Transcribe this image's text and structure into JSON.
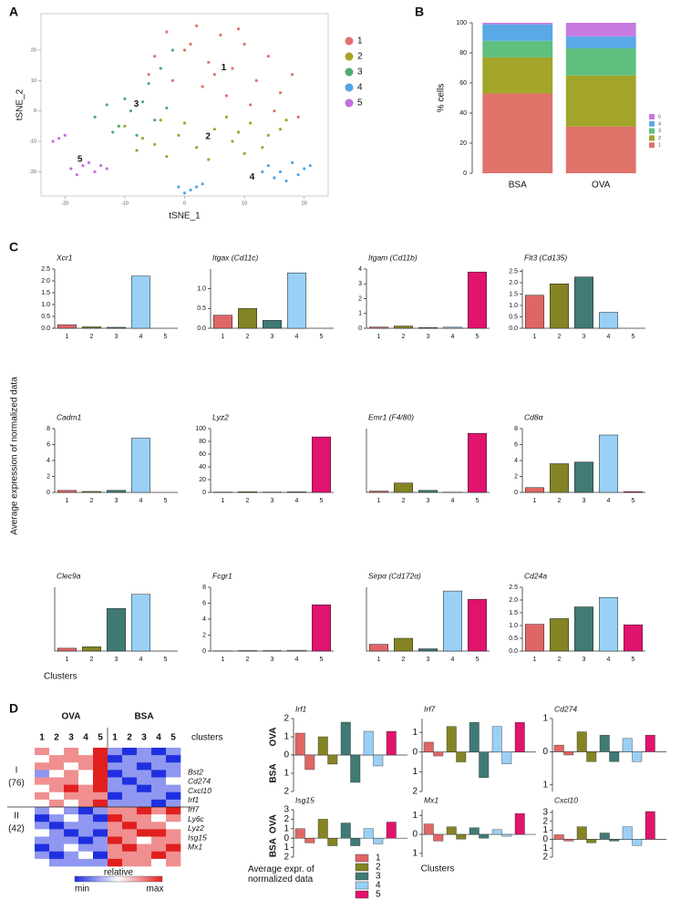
{
  "chart_data": [
    {
      "type": "scatter",
      "panel": "A",
      "x_label": "tSNE_1",
      "y_label": "tSNE_2",
      "xlim": [
        -24,
        24
      ],
      "ylim": [
        -28,
        32
      ],
      "xticks": [
        -20,
        -10,
        0,
        10,
        20
      ],
      "yticks": [
        -20,
        -10,
        0,
        10,
        20
      ],
      "grid": false,
      "series": [
        {
          "name": "1",
          "color": "#e0736a",
          "x": [
            -3,
            2,
            6,
            10,
            14,
            18,
            -5,
            0,
            4,
            8,
            12,
            16,
            -2,
            3,
            7,
            11,
            15,
            19,
            1,
            9,
            -6,
            5
          ],
          "y": [
            26,
            28,
            25,
            22,
            18,
            12,
            18,
            20,
            16,
            14,
            10,
            6,
            10,
            8,
            5,
            2,
            0,
            -2,
            22,
            27,
            12,
            12
          ]
        },
        {
          "name": "2",
          "color": "#a3a52a",
          "x": [
            -10,
            -7,
            -4,
            -1,
            2,
            5,
            8,
            11,
            14,
            17,
            -8,
            -3,
            0,
            4,
            7,
            10,
            13,
            16,
            -5,
            9
          ],
          "y": [
            -5,
            -9,
            -3,
            -8,
            -12,
            -6,
            -10,
            -4,
            -8,
            -3,
            -13,
            -15,
            -4,
            -16,
            -2,
            -14,
            -12,
            -6,
            -11,
            -7
          ]
        },
        {
          "name": "3",
          "color": "#4fae74",
          "x": [
            -15,
            -13,
            -11,
            -9,
            -7,
            -5,
            -3,
            -12,
            -8,
            -10,
            -6,
            -4,
            -2
          ],
          "y": [
            -2,
            2,
            -5,
            0,
            3,
            -3,
            1,
            -7,
            -8,
            4,
            9,
            14,
            20
          ]
        },
        {
          "name": "4",
          "color": "#4fa6e6",
          "x": [
            14,
            16,
            18,
            20,
            15,
            17,
            19,
            21,
            13,
            -1,
            1,
            3,
            0,
            2
          ],
          "y": [
            -18,
            -20,
            -17,
            -19,
            -22,
            -23,
            -21,
            -18,
            -20,
            -25,
            -26,
            -24,
            -27,
            -25
          ]
        },
        {
          "name": "5",
          "color": "#c46fe0",
          "x": [
            -19,
            -17,
            -15,
            -13,
            -18,
            -16,
            -14,
            -21,
            -22,
            -20
          ],
          "y": [
            -19,
            -18,
            -20,
            -19,
            -21,
            -17,
            -18,
            -9,
            -10,
            -8
          ]
        }
      ]
    },
    {
      "type": "stacked-bar",
      "panel": "B",
      "y_label": "% cells",
      "categories": [
        "BSA",
        "OVA"
      ],
      "ylim": [
        0,
        100
      ],
      "yticks": [
        0,
        20,
        40,
        60,
        80,
        100
      ],
      "series": [
        {
          "name": "1",
          "color": "#e0736a",
          "values": [
            53,
            31
          ]
        },
        {
          "name": "2",
          "color": "#a3a52a",
          "values": [
            24,
            34
          ]
        },
        {
          "name": "3",
          "color": "#5fbf7f",
          "values": [
            11,
            18
          ]
        },
        {
          "name": "4",
          "color": "#5aa9e6",
          "values": [
            11,
            8
          ]
        },
        {
          "name": "5",
          "color": "#c77be0",
          "values": [
            1,
            9
          ]
        }
      ]
    },
    {
      "type": "bar",
      "panel": "C",
      "y_label": "Average expression of normalized data",
      "x_label": "Clusters",
      "colors": [
        "#e06666",
        "#848424",
        "#3f7a74",
        "#9ad0f5",
        "#e0136d"
      ],
      "charts": [
        {
          "title": "Xcr1",
          "categories": [
            "1",
            "2",
            "3",
            "4",
            "5"
          ],
          "values": [
            0.15,
            0.06,
            0.04,
            2.2,
            0
          ],
          "ylim": [
            0,
            2.5
          ],
          "yticks": [
            {
              "value": 0,
              "label": "0.0"
            },
            0.5,
            {
              "value": 1,
              "label": "1.0"
            },
            1.5,
            {
              "value": 2,
              "label": "2.0"
            },
            2.5
          ]
        },
        {
          "title": "Itgax (Cd11c)",
          "categories": [
            "1",
            "2",
            "3",
            "4",
            "5"
          ],
          "values": [
            0.33,
            0.5,
            0.2,
            1.4,
            0
          ],
          "ylim": [
            0,
            1.5
          ],
          "yticks": [
            {
              "value": 0,
              "label": "0.0"
            },
            0.5,
            {
              "value": 1,
              "label": "1.0"
            }
          ]
        },
        {
          "title": "Itgam (Cd11b)",
          "categories": [
            "1",
            "2",
            "3",
            "4",
            "5"
          ],
          "values": [
            0.08,
            0.15,
            0.05,
            0.07,
            3.8
          ],
          "ylim": [
            0,
            4
          ],
          "yticks": [
            0,
            1,
            2,
            3,
            4
          ]
        },
        {
          "title": "Flt3 (Cd135)",
          "categories": [
            "1",
            "2",
            "3",
            "4",
            "5"
          ],
          "values": [
            1.45,
            1.95,
            2.25,
            0.7,
            0
          ],
          "ylim": [
            0,
            2.6
          ],
          "yticks": [
            {
              "value": 0,
              "label": "0.0"
            },
            0.5,
            {
              "value": 1,
              "label": "1.0"
            },
            1.5,
            {
              "value": 2,
              "label": "2.0"
            },
            2.5
          ]
        },
        {
          "title": "Cadm1",
          "categories": [
            "1",
            "2",
            "3",
            "4",
            "5"
          ],
          "values": [
            0.25,
            0.12,
            0.25,
            6.8,
            0
          ],
          "ylim": [
            0,
            8
          ],
          "yticks": [
            0,
            2,
            4,
            6,
            8
          ]
        },
        {
          "title": "Lyz2",
          "categories": [
            "1",
            "2",
            "3",
            "4",
            "5"
          ],
          "values": [
            0.5,
            1,
            0.5,
            1,
            87
          ],
          "ylim": [
            0,
            100
          ],
          "yticks": [
            0,
            20,
            40,
            60,
            80,
            100
          ]
        },
        {
          "title": "Emr1 (F4/80)",
          "categories": [
            "1",
            "2",
            "3",
            "4",
            "5"
          ],
          "values": [
            2,
            14,
            3,
            0.3,
            88
          ],
          "ylim": [
            0,
            95
          ]
        },
        {
          "title": "Cd8α",
          "categories": [
            "1",
            "2",
            "3",
            "4",
            "5"
          ],
          "values": [
            0.6,
            3.6,
            3.8,
            7.2,
            0.1
          ],
          "ylim": [
            0,
            8
          ],
          "yticks": [
            0,
            2,
            4,
            6,
            8
          ]
        },
        {
          "title": "Clec9a",
          "categories": [
            "1",
            "2",
            "3",
            "4",
            "5"
          ],
          "values": [
            0.02,
            0.03,
            0.3,
            0.4,
            0
          ],
          "ylim": [
            0,
            0.45
          ]
        },
        {
          "title": "Fcgr1",
          "categories": [
            "1",
            "2",
            "3",
            "4",
            "5"
          ],
          "values": [
            0.02,
            0.05,
            0.05,
            0.1,
            5.8
          ],
          "ylim": [
            0,
            8
          ],
          "yticks": [
            0,
            2,
            4,
            6,
            8
          ]
        },
        {
          "title": "Sirpα (Cd172α)",
          "categories": [
            "1",
            "2",
            "3",
            "4",
            "5"
          ],
          "values": [
            0.9,
            1.7,
            0.3,
            8,
            6.9
          ],
          "ylim": [
            0,
            8.5
          ]
        },
        {
          "title": "Cd24a",
          "categories": [
            "1",
            "2",
            "3",
            "4",
            "5"
          ],
          "values": [
            1.05,
            1.27,
            1.73,
            2.1,
            1.03
          ],
          "ylim": [
            0,
            2.5
          ],
          "yticks": [
            {
              "value": 0,
              "label": "0.0"
            },
            0.5,
            {
              "value": 1,
              "label": "1.0"
            },
            1.5,
            {
              "value": 2,
              "label": "2.0"
            },
            2.5
          ]
        }
      ]
    },
    {
      "type": "heatmap",
      "panel": "D",
      "column_groups": [
        {
          "name": "OVA",
          "color": "#3bb34a"
        },
        {
          "name": "BSA",
          "color": "#2c3e8c"
        }
      ],
      "columns": [
        "1",
        "2",
        "3",
        "4",
        "5",
        "1",
        "2",
        "3",
        "4",
        "5"
      ],
      "column_colors": [
        "#e0413a",
        "#8a8a1e",
        "#3f7a74",
        "#4fa6e6",
        "#a93de0"
      ],
      "columns_title": "clusters",
      "row_groups": [
        {
          "label": "I",
          "count": "(76)"
        },
        {
          "label": "II",
          "count": "(42)"
        }
      ],
      "genes": [
        "Bst2",
        "Cd274",
        "Cxcl10",
        "Irf1",
        "Irf7",
        "Ly6c",
        "Lyz2",
        "Isg15",
        "Mx1"
      ],
      "zlim": [
        -2,
        2
      ],
      "colormap": [
        "#1f2fe0",
        "#ffffff",
        "#e01f1f"
      ],
      "colorbar": {
        "title": "relative",
        "min": "min",
        "max": "max"
      },
      "values": [
        [
          1,
          0,
          1,
          0,
          2,
          -1,
          -2,
          -1,
          -2,
          -1
        ],
        [
          0,
          1,
          1,
          1,
          2,
          -2,
          -1,
          -1,
          -1,
          -2
        ],
        [
          1,
          1,
          0,
          1,
          2,
          -1,
          -1,
          -2,
          -1,
          -1
        ],
        [
          -1,
          0,
          1,
          0,
          2,
          -2,
          -1,
          -1,
          -2,
          -1
        ],
        [
          1,
          1,
          1,
          0,
          2,
          -1,
          -2,
          -1,
          -1,
          0
        ],
        [
          0,
          1,
          2,
          1,
          2,
          -1,
          -1,
          -2,
          -1,
          -1
        ],
        [
          1,
          0,
          1,
          1,
          1,
          -2,
          -1,
          -1,
          -1,
          -2
        ],
        [
          0,
          1,
          0,
          1,
          2,
          -1,
          -1,
          -1,
          -2,
          -1
        ],
        [
          -1,
          0,
          -1,
          -2,
          -1,
          1,
          1,
          2,
          1,
          2
        ],
        [
          -2,
          -1,
          0,
          -1,
          -2,
          2,
          1,
          1,
          0,
          1
        ],
        [
          -1,
          -2,
          -1,
          -1,
          -1,
          1,
          2,
          1,
          1,
          0
        ],
        [
          0,
          -1,
          -2,
          -1,
          -2,
          1,
          1,
          2,
          2,
          1
        ],
        [
          -1,
          -1,
          -1,
          -2,
          -1,
          2,
          1,
          0,
          1,
          1
        ],
        [
          -2,
          -1,
          0,
          -1,
          -1,
          1,
          2,
          1,
          1,
          2
        ],
        [
          -1,
          -2,
          -1,
          0,
          -2,
          1,
          1,
          1,
          2,
          1
        ],
        [
          0,
          -1,
          -1,
          -1,
          -1,
          2,
          1,
          1,
          0,
          1
        ]
      ]
    },
    {
      "type": "mirror-bar",
      "x_label": "Clusters",
      "legend_title": "Average expr. of normalized data",
      "legend": [
        "1",
        "2",
        "3",
        "4",
        "5"
      ],
      "colors": [
        "#e06666",
        "#848424",
        "#3f7a74",
        "#9ad0f5",
        "#e0136d"
      ],
      "series_colors": [
        "#3bb34a",
        "#2c3e8c"
      ],
      "charts": [
        {
          "title": "Irf1",
          "ylim": [
            -2,
            2
          ],
          "yticks": [
            2,
            1,
            0,
            {
              "value": -1,
              "label": "1"
            },
            {
              "value": -2,
              "label": "2"
            }
          ],
          "series": [
            {
              "name": "OVA",
              "values": [
                1.2,
                1.0,
                1.8,
                1.3,
                1.3
              ]
            },
            {
              "name": "BSA",
              "values": [
                -0.8,
                -0.5,
                -1.5,
                -0.6,
                0
              ]
            }
          ]
        },
        {
          "title": "Irf7",
          "ylim": [
            -2,
            1.7
          ],
          "yticks": [
            1,
            0,
            {
              "value": -1,
              "label": "1"
            },
            {
              "value": -2,
              "label": "2"
            }
          ],
          "series": [
            {
              "name": "OVA",
              "values": [
                0.5,
                1.3,
                1.5,
                1.3,
                1.5
              ]
            },
            {
              "name": "BSA",
              "values": [
                -0.2,
                -0.5,
                -1.3,
                -0.6,
                0
              ]
            }
          ]
        },
        {
          "title": "Cd274",
          "ylim": [
            -1.2,
            1
          ],
          "yticks": [
            1,
            0,
            {
              "value": -1,
              "label": "1"
            }
          ],
          "series": [
            {
              "name": "OVA",
              "values": [
                0.2,
                0.6,
                0.5,
                0.4,
                0.5
              ]
            },
            {
              "name": "BSA",
              "values": [
                -0.1,
                -0.3,
                -0.3,
                -0.3,
                0
              ]
            }
          ]
        },
        {
          "title": "Isg15",
          "ylim": [
            -2,
            3
          ],
          "yticks": [
            3,
            2,
            1,
            0,
            {
              "value": -1,
              "label": "1"
            },
            {
              "value": -2,
              "label": "2"
            }
          ],
          "series": [
            {
              "name": "OVA",
              "values": [
                1.0,
                2.0,
                1.6,
                1.0,
                1.7
              ]
            },
            {
              "name": "BSA",
              "values": [
                -0.5,
                -0.8,
                -0.8,
                -0.6,
                0
              ]
            }
          ]
        },
        {
          "title": "Mx1",
          "ylim": [
            -1.2,
            1.3
          ],
          "yticks": [
            1,
            0,
            {
              "value": -1,
              "label": "1"
            }
          ],
          "series": [
            {
              "name": "OVA",
              "values": [
                0.55,
                0.4,
                0.35,
                0.25,
                1.1
              ]
            },
            {
              "name": "BSA",
              "values": [
                -0.35,
                -0.25,
                -0.2,
                -0.1,
                0
              ]
            }
          ]
        },
        {
          "title": "Cxcl10",
          "ylim": [
            -2,
            3.3
          ],
          "yticks": [
            3,
            2,
            1,
            0,
            {
              "value": -1,
              "label": "1"
            },
            {
              "value": -2,
              "label": "2"
            }
          ],
          "series": [
            {
              "name": "OVA",
              "values": [
                0.5,
                1.4,
                0.7,
                1.4,
                3.1
              ]
            },
            {
              "name": "BSA",
              "values": [
                -0.2,
                -0.4,
                -0.2,
                -0.7,
                0
              ]
            }
          ]
        }
      ]
    }
  ]
}
